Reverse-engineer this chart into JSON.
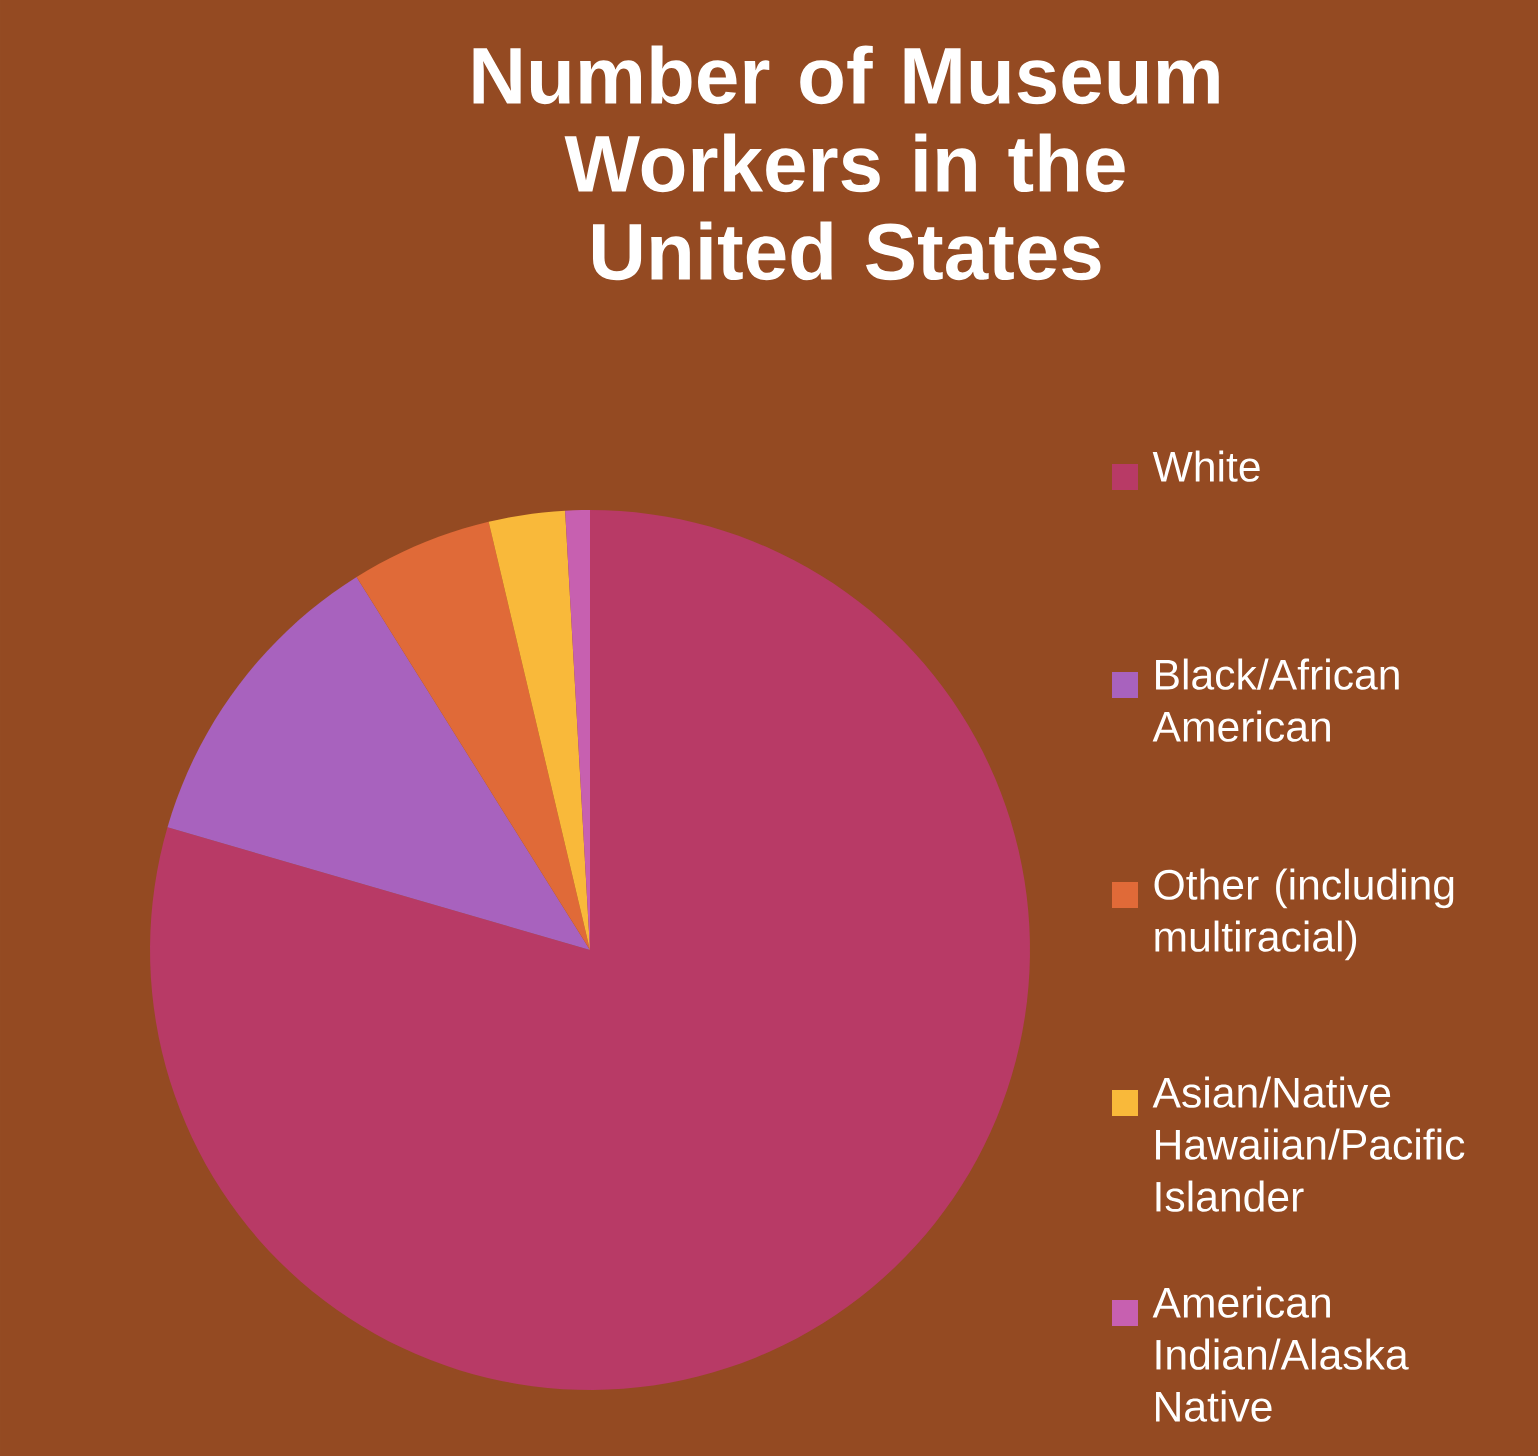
{
  "chart_data": {
    "type": "pie",
    "title": "Number of Museum Workers in the United States",
    "categories": [
      "White",
      "Black/African American",
      "Other (including multiracial)",
      "Asian/Native Hawaiian/Pacific Islander",
      "American Indian/Alaska Native"
    ],
    "values": [
      79.5,
      11.6,
      5.2,
      2.8,
      0.9
    ],
    "colors": [
      "#b83a66",
      "#a862be",
      "#e06a38",
      "#f9b93a",
      "#c760b0"
    ],
    "legend": "right"
  }
}
